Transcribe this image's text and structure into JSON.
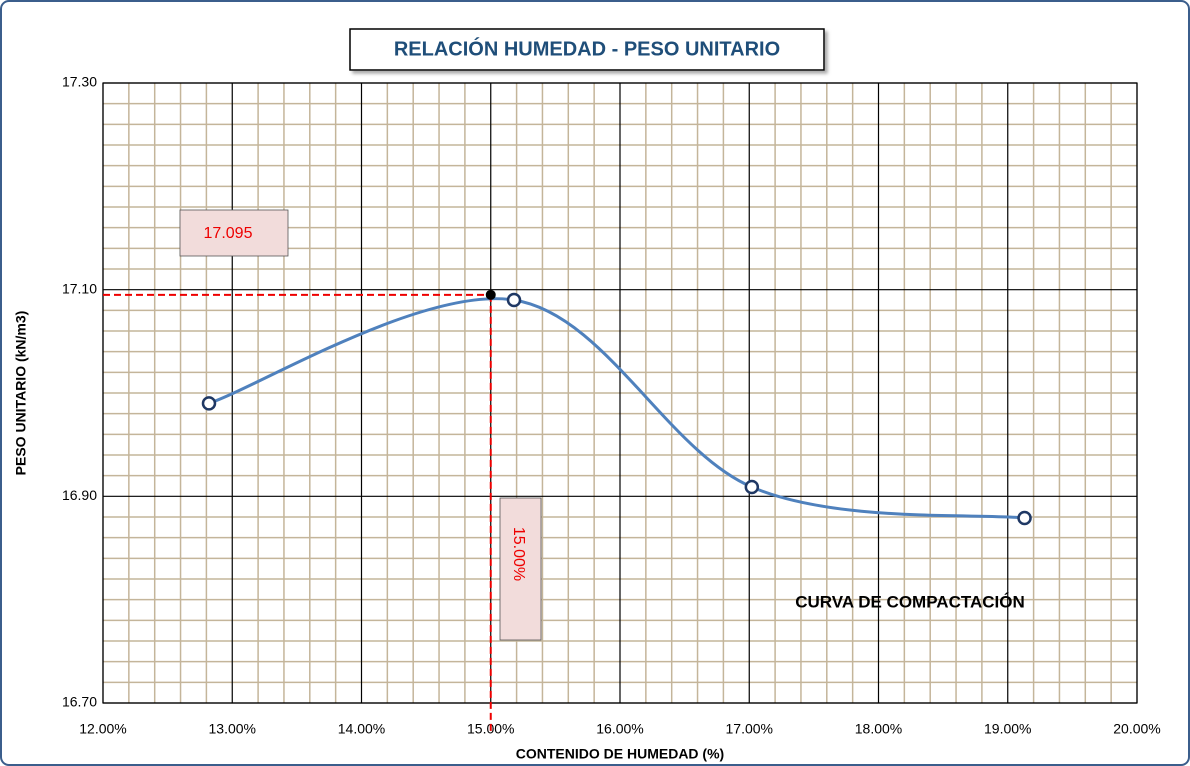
{
  "chart_data": {
    "type": "line",
    "title": "RELACIÓN HUMEDAD - PESO UNITARIO",
    "x_label": "CONTENIDO DE HUMEDAD (%)",
    "y_label": "PESO  UNITARIO (kN/m3)",
    "annotation": "CURVA DE COMPACTACIÓN",
    "series": [
      {
        "name": "CURVA DE COMPACTACIÓN",
        "color": "#4f81bd",
        "x": [
          12.82,
          15.18,
          17.02,
          19.13
        ],
        "values": [
          16.99,
          17.09,
          16.909,
          16.879
        ]
      }
    ],
    "optimum": {
      "x": 15,
      "y": 17.095,
      "x_label": "15.00%"
    },
    "xlim": [
      12,
      20
    ],
    "xticks": [
      {
        "value": 12,
        "label": "12.00%"
      },
      {
        "value": 13,
        "label": "13.00%"
      },
      {
        "value": 14,
        "label": "14.00%"
      },
      {
        "value": 15,
        "label": "15.00%"
      },
      {
        "value": 16,
        "label": "16.00%"
      },
      {
        "value": 17,
        "label": "17.00%"
      },
      {
        "value": 18,
        "label": "18.00%"
      },
      {
        "value": 19,
        "label": "19.00%"
      },
      {
        "value": 20,
        "label": "20.00%"
      }
    ],
    "ylim": [
      16.7,
      17.3
    ],
    "yticks": [
      {
        "value": 16.7,
        "label": "16.70"
      },
      {
        "value": 16.9,
        "label": "16.90"
      },
      {
        "value": 17.1,
        "label": "17.10"
      },
      {
        "value": 17.3,
        "label": "17.30"
      }
    ],
    "grid": true
  }
}
